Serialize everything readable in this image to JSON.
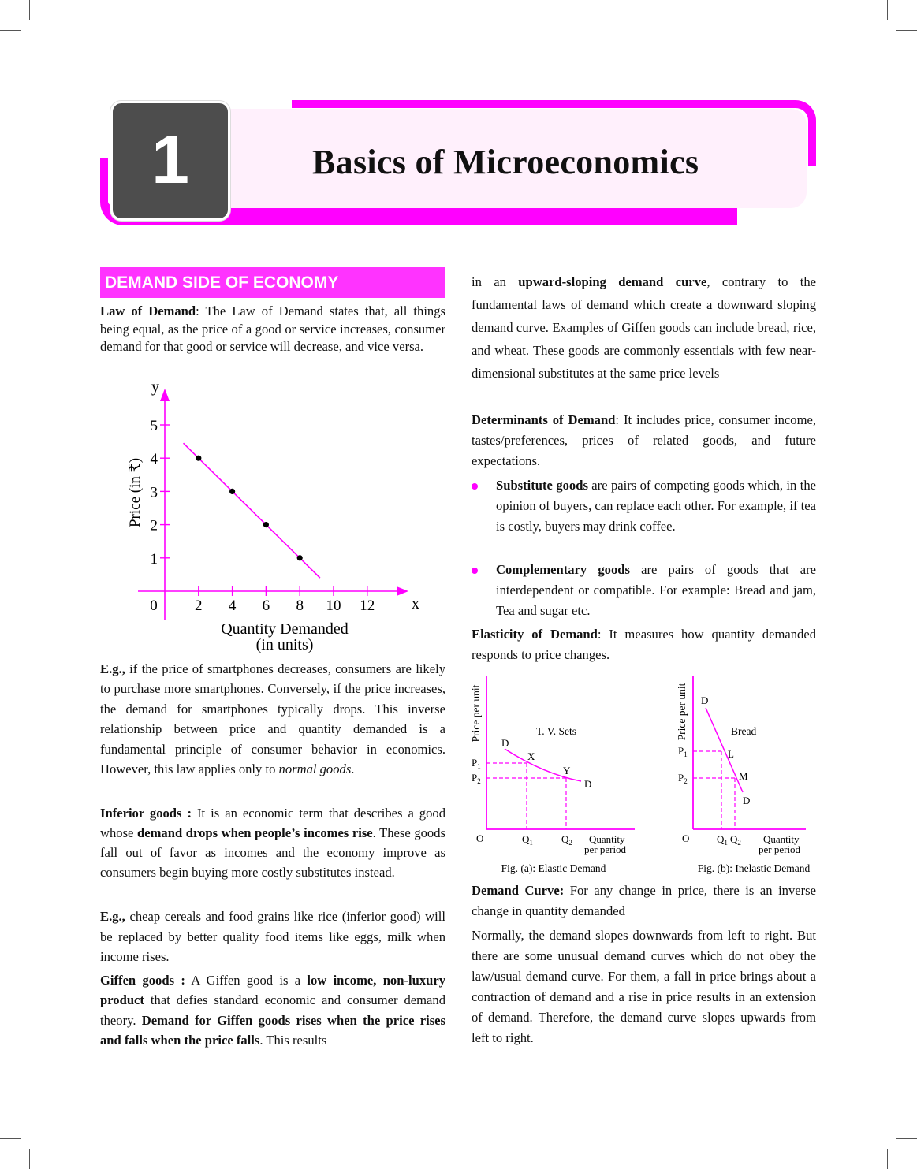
{
  "colors": {
    "accent": "#ff00ff",
    "section_bg": "#ff33ff",
    "banner_bg": "#fff0fc",
    "chapter_box": "#4d4d4d"
  },
  "chapter": {
    "number": "1",
    "title": "Basics of Microeconomics"
  },
  "section_heading": "DEMAND SIDE OF ECONOMY",
  "left": {
    "law_of_demand": [
      {
        "t": "Law of Demand",
        "b": true
      },
      {
        "t": ": The Law of Demand states that, all things being equal, as the price of a good or service increases, consumer demand for that good or service will decrease, and vice versa."
      }
    ],
    "eg1": [
      {
        "t": "E.g.,",
        "b": true
      },
      {
        "t": " if the price of smartphones decreases, consumers are likely to purchase more smartphones. Conversely, if the price increases, the demand for smartphones typically drops. This inverse relationship between price and quantity demanded is a fundamental principle of consumer behavior in economics. However, this law applies only to "
      },
      {
        "t": "normal goods",
        "i": true
      },
      {
        "t": "."
      }
    ],
    "inferior": [
      {
        "t": "Inferior goods :",
        "b": true
      },
      {
        "t": "  It is an economic term that describes a good whose "
      },
      {
        "t": "demand drops when people’s incomes rise",
        "b": true
      },
      {
        "t": ". These goods fall out of favor as incomes and the economy improve as consumers begin buying more costly substitutes instead."
      }
    ],
    "eg2": [
      {
        "t": "E.g.,",
        "b": true
      },
      {
        "t": " cheap cereals and food grains like rice (inferior good) will be replaced by better quality food items like eggs, milk when income rises."
      }
    ],
    "giffen": [
      {
        "t": "Giffen goods :",
        "b": true
      },
      {
        "t": " A Giffen good is a "
      },
      {
        "t": "low income, non-luxury product",
        "b": true
      },
      {
        "t": " that defies standard economic and consumer demand theory. "
      },
      {
        "t": "Demand for Giffen goods rises when the price rises and falls when the price falls",
        "b": true
      },
      {
        "t": ". This results"
      }
    ]
  },
  "right": {
    "giffen_cont": [
      {
        "t": "in an "
      },
      {
        "t": "upward-sloping demand curve",
        "b": true
      },
      {
        "t": ", contrary to the fundamental laws of demand which create a downward sloping demand curve. Examples of Giffen goods can include bread, rice, and wheat. These goods are commonly essentials with few near-dimensional substitutes at the same price levels"
      }
    ],
    "determinants": [
      {
        "t": "Determinants of Demand",
        "b": true
      },
      {
        "t": ": It includes price, consumer income, tastes/preferences, prices of related goods, and future expectations."
      }
    ],
    "bullets": [
      [
        {
          "t": "Substitute goods",
          "b": true
        },
        {
          "t": " are pairs of competing goods which, in the opinion of buyers, can replace each other. For example, if tea is costly, buyers may drink coffee."
        }
      ],
      [
        {
          "t": "Complementary goods",
          "b": true
        },
        {
          "t": " are pairs of goods that are interdependent or compatible. For example: Bread and jam, Tea and sugar etc."
        }
      ]
    ],
    "elasticity": [
      {
        "t": "Elasticity of Demand",
        "b": true
      },
      {
        "t": ": It measures how quantity demanded responds to price changes."
      }
    ],
    "demand_curve": [
      {
        "t": "Demand Curve:",
        "b": true
      },
      {
        "t": " For any change in price, there is an inverse change in quantity demanded"
      }
    ],
    "normally": [
      {
        "t": "Normally, the demand slopes downwards from left to right. But there are some unusual demand curves which do not obey the law/usual demand curve. For them, a fall in price brings about a contraction of demand and a rise in price results in an extension of demand. Therefore, the demand curve slopes upwards from left to right."
      }
    ]
  },
  "chart_data": {
    "type": "line",
    "title": "",
    "xlabel": "Quantity Demanded\n(in units)",
    "xlabel_lines": [
      "Quantity Demanded",
      "(in units)"
    ],
    "ylabel": "Price (in ₹)",
    "x_axis_letter": "x",
    "y_axis_letter": "y",
    "origin_label": "0",
    "xticks": [
      2,
      4,
      6,
      8,
      10,
      12
    ],
    "yticks": [
      1,
      2,
      3,
      4,
      5
    ],
    "xlim": [
      0,
      13
    ],
    "ylim": [
      0,
      5.5
    ],
    "points": [
      {
        "x": 2,
        "y": 4
      },
      {
        "x": 4,
        "y": 3
      },
      {
        "x": 6,
        "y": 2
      },
      {
        "x": 8,
        "y": 1
      }
    ],
    "line_color": "#ff00ff",
    "grid": false
  },
  "figures": {
    "a": {
      "ylabel": "Price per unit",
      "product": "T. V. Sets",
      "origin": "O",
      "d_start": "D",
      "d_end": "D",
      "point1": "X",
      "point2": "Y",
      "p1": "P",
      "p2": "P",
      "q1": "Q",
      "q2": "Q",
      "sub1": "1",
      "sub2": "2",
      "xlabel1": "Quantity",
      "xlabel2": "per period",
      "caption": "Fig. (a): Elastic Demand"
    },
    "b": {
      "ylabel": "Price per unit",
      "product": "Bread",
      "origin": "O",
      "d_start": "D",
      "d_end": "D",
      "point1": "L",
      "point2": "M",
      "p1": "P",
      "p2": "P",
      "q1": "Q",
      "q2": "Q",
      "sub1": "1",
      "sub2": "2",
      "xlabel1": "Quantity",
      "xlabel2": "per period",
      "caption": "Fig. (b): Inelastic Demand"
    }
  }
}
